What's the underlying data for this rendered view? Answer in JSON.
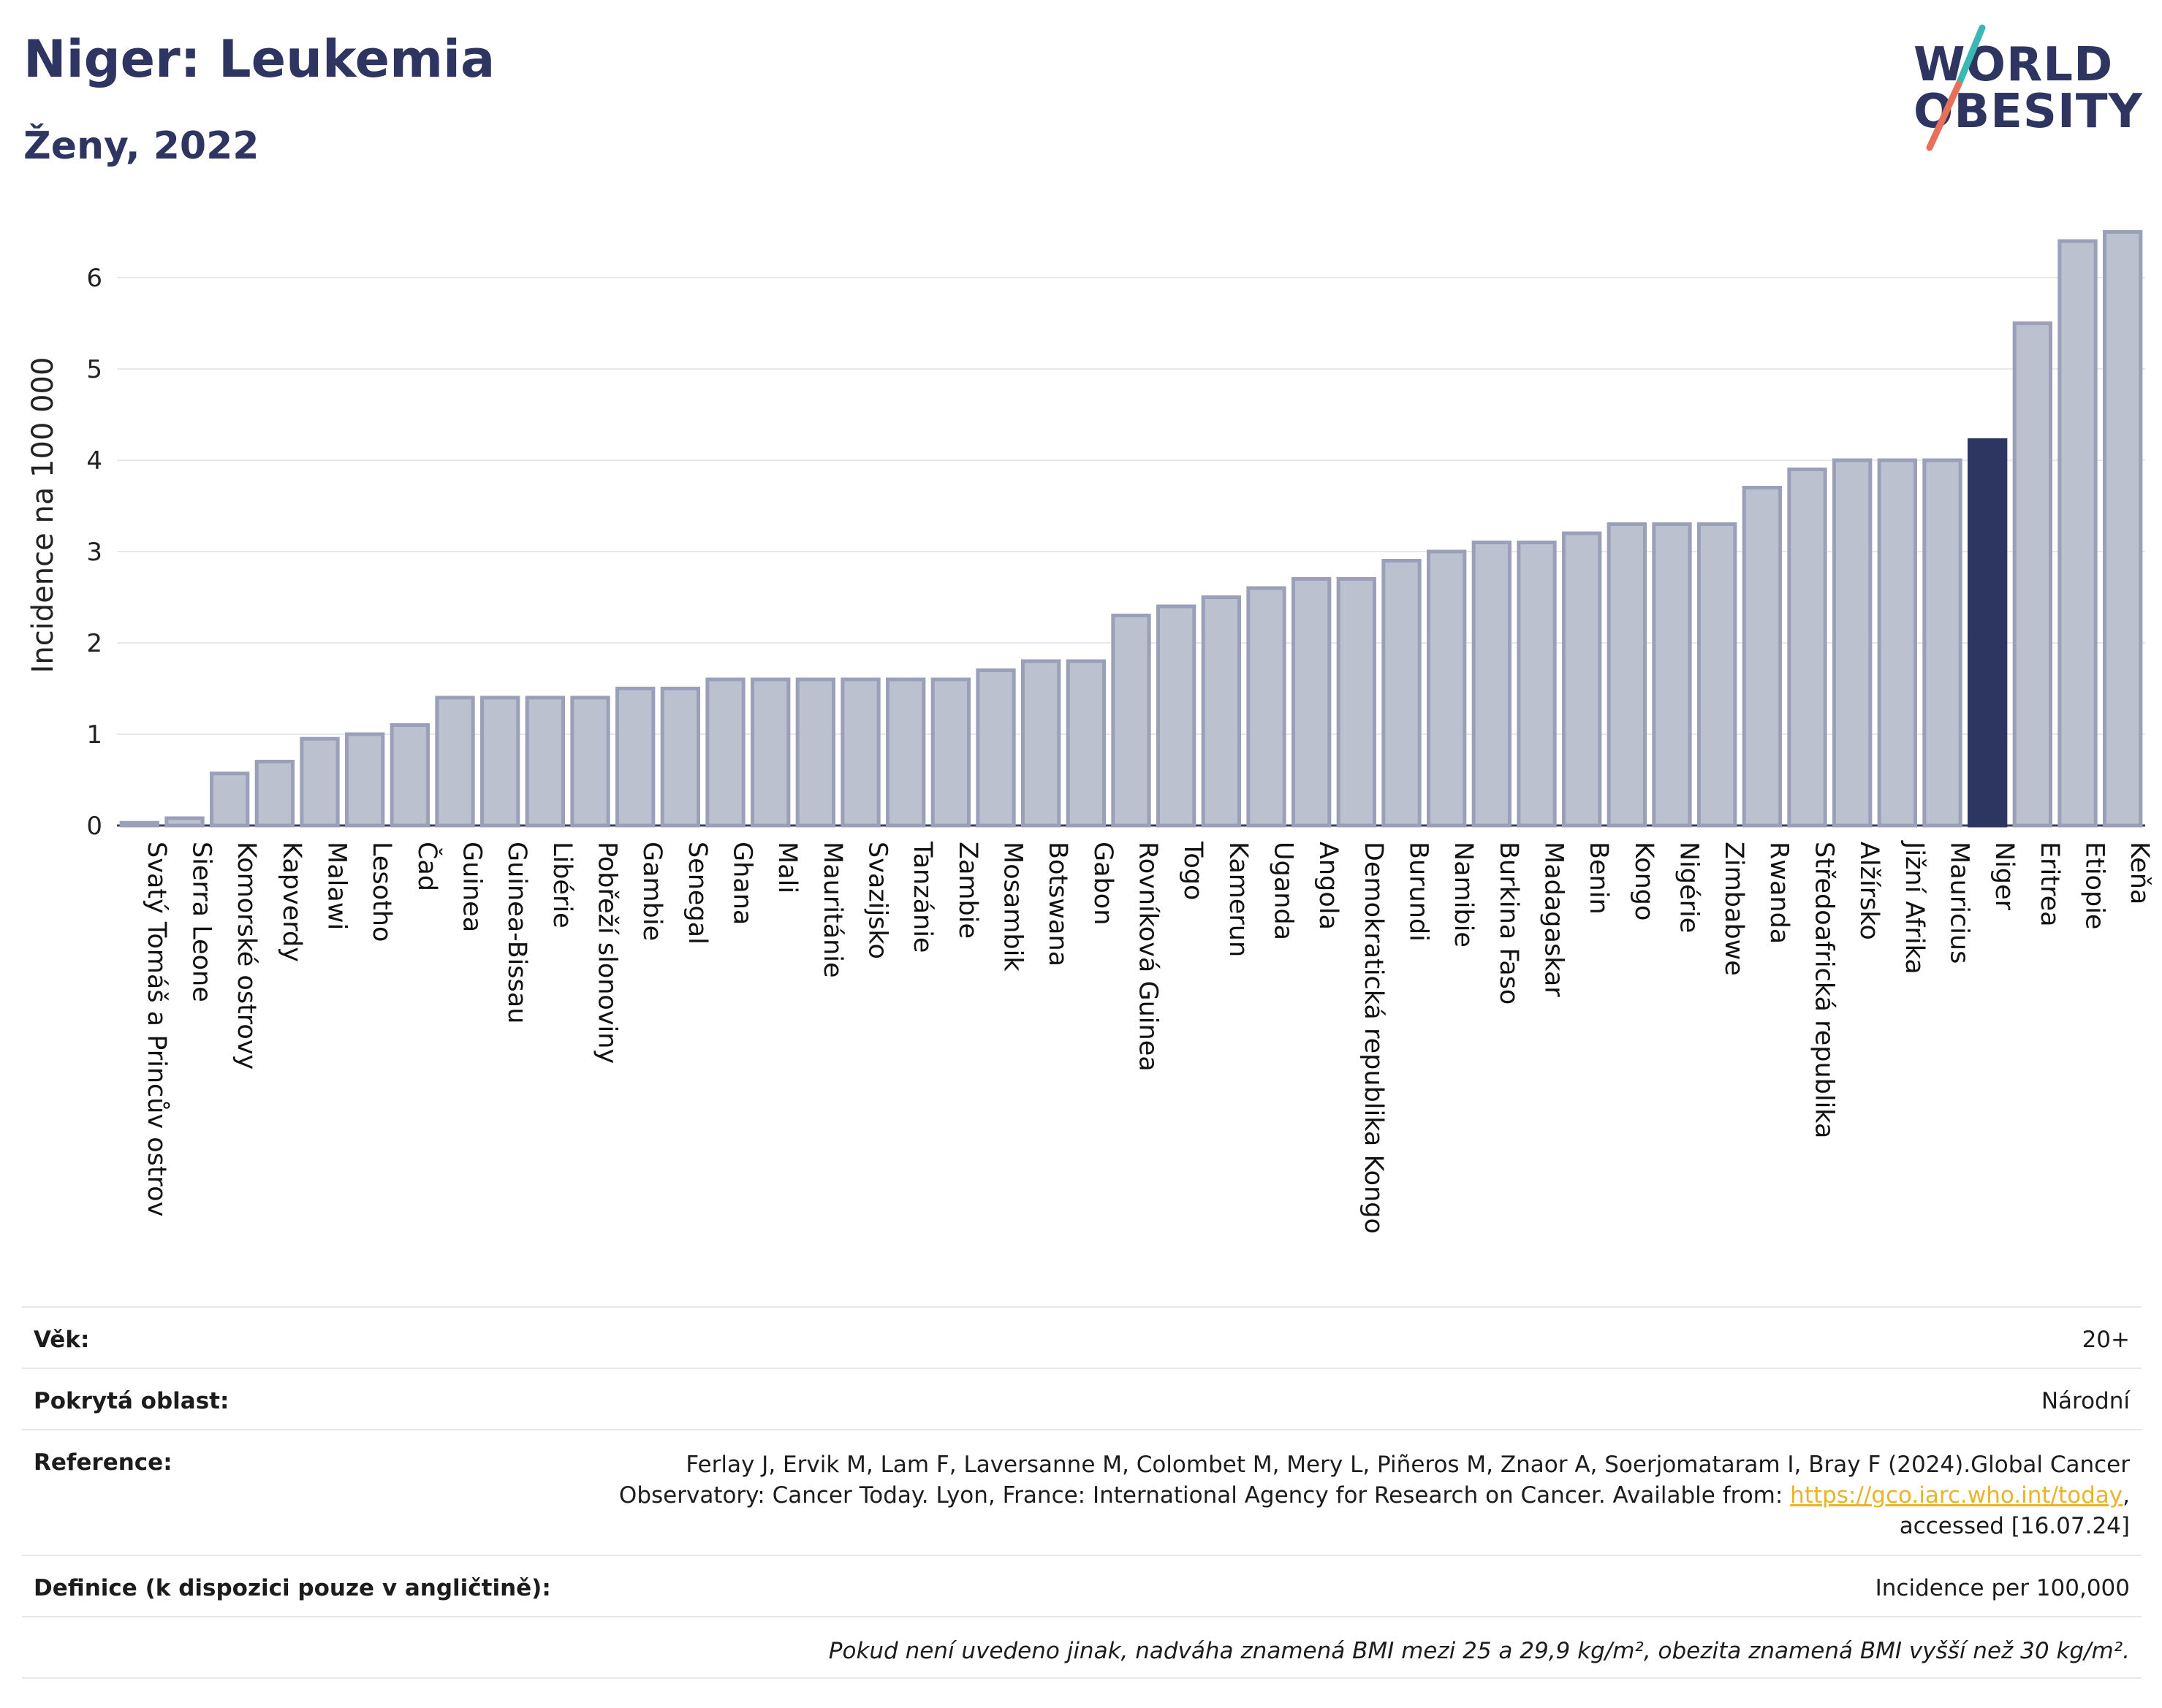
{
  "header": {
    "title": "Niger: Leukemia",
    "subtitle": "Ženy, 2022",
    "logo_line1": "WORLD",
    "logo_line2": "OBESITY"
  },
  "colors": {
    "bar_default": "#bcc1d0",
    "bar_border": "#9aa0b8",
    "bar_highlight": "#2d3561",
    "logo_slash_teal": "#3bb8b4",
    "logo_slash_coral": "#e8705a",
    "link": "#e7b42a"
  },
  "chart_data": {
    "type": "bar",
    "ylabel": "Incidence na 100 000",
    "ylim": [
      0,
      6.6
    ],
    "yticks": [
      0,
      1,
      2,
      3,
      4,
      5,
      6
    ],
    "grid": true,
    "highlight": "Niger",
    "categories": [
      "Svatý Tomáš a Princův ostrov",
      "Sierra Leone",
      "Komorské ostrovy",
      "Kapverdy",
      "Malawi",
      "Lesotho",
      "Čad",
      "Guinea",
      "Guinea-Bissau",
      "Libérie",
      "Pobřeží slonoviny",
      "Gambie",
      "Senegal",
      "Ghana",
      "Mali",
      "Mauritánie",
      "Svazijsko",
      "Tanzánie",
      "Zambie",
      "Mosambik",
      "Botswana",
      "Gabon",
      "Rovníková Guinea",
      "Togo",
      "Kamerun",
      "Uganda",
      "Angola",
      "Demokratická republika Kongo",
      "Burundi",
      "Namibie",
      "Burkina Faso",
      "Madagaskar",
      "Benin",
      "Kongo",
      "Nigérie",
      "Zimbabwe",
      "Rwanda",
      "Středoafrická republika",
      "Alžírsko",
      "Jižní Afrika",
      "Mauricius",
      "Niger",
      "Eritrea",
      "Etiopie",
      "Keňa"
    ],
    "values": [
      0.03,
      0.08,
      0.57,
      0.7,
      0.95,
      1.0,
      1.1,
      1.4,
      1.4,
      1.4,
      1.4,
      1.5,
      1.5,
      1.6,
      1.6,
      1.6,
      1.6,
      1.6,
      1.6,
      1.7,
      1.8,
      1.8,
      2.3,
      2.4,
      2.5,
      2.6,
      2.7,
      2.7,
      2.9,
      3.0,
      3.1,
      3.1,
      3.2,
      3.3,
      3.3,
      3.3,
      3.7,
      3.9,
      4.0,
      4.0,
      4.0,
      4.22,
      5.5,
      6.4,
      6.5
    ]
  },
  "meta": {
    "age_label": "Věk:",
    "age_value": "20+",
    "coverage_label": "Pokrytá oblast:",
    "coverage_value": "Národní",
    "reference_label": "Reference:",
    "reference_line1": "Ferlay J, Ervik M, Lam F, Laversanne M, Colombet M, Mery L, Piñeros M, Znaor A, Soerjomataram I, Bray F (2024).Global Cancer",
    "reference_line2_prefix": "Observatory: Cancer Today. Lyon, France: International Agency for Research on Cancer. Available from: ",
    "reference_link": "https://gco.iarc.who.int/today",
    "reference_line2_suffix": ",",
    "reference_line3": "accessed [16.07.24]",
    "definition_label": "Definice (k dispozici pouze v angličtině):",
    "definition_value": "Incidence per 100,000",
    "note": "Pokud není uvedeno jinak, nadváha znamená BMI mezi 25 a 29,9 kg/m², obezita znamená BMI vyšší než 30 kg/m²."
  }
}
